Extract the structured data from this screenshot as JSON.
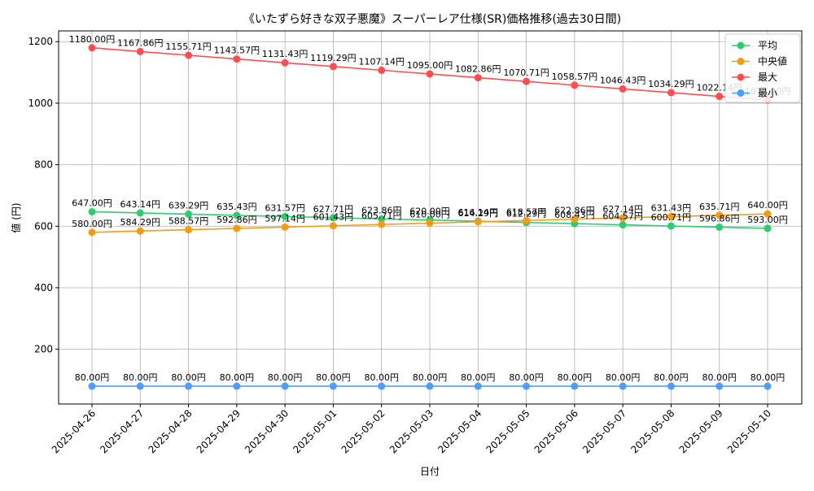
{
  "chart_data": {
    "type": "line",
    "title": "《いたずら好きな双子悪魔》スーパーレア仕様(SR)価格推移(過去30日間)",
    "xlabel": "日付",
    "ylabel": "値 (円)",
    "ylim": [
      22,
      1235
    ],
    "yticks": [
      200,
      400,
      600,
      800,
      1000,
      1200
    ],
    "grid": true,
    "legend_position": "top-right",
    "label_suffix": "円",
    "categories": [
      "2025-04-26",
      "2025-04-27",
      "2025-04-28",
      "2025-04-29",
      "2025-04-30",
      "2025-05-01",
      "2025-05-02",
      "2025-05-03",
      "2025-05-04",
      "2025-05-05",
      "2025-05-06",
      "2025-05-07",
      "2025-05-08",
      "2025-05-09",
      "2025-05-10"
    ],
    "series": [
      {
        "name": "平均",
        "color": "#2ecc71",
        "values": [
          647.0,
          643.14,
          639.29,
          635.43,
          631.57,
          627.71,
          623.86,
          620.0,
          616.14,
          612.29,
          608.43,
          604.57,
          600.71,
          596.86,
          593.0
        ]
      },
      {
        "name": "中央値",
        "color": "#f39c12",
        "values": [
          580.0,
          584.29,
          588.57,
          592.86,
          597.14,
          601.43,
          605.71,
          610.0,
          614.29,
          618.57,
          622.86,
          627.14,
          631.43,
          635.71,
          640.0
        ]
      },
      {
        "name": "最大",
        "color": "#ff4d4d",
        "values": [
          1180.0,
          1167.86,
          1155.71,
          1143.57,
          1131.43,
          1119.29,
          1107.14,
          1095.0,
          1082.86,
          1070.71,
          1058.57,
          1046.43,
          1034.29,
          1022.14,
          1010.0
        ]
      },
      {
        "name": "最小",
        "color": "#4d9fff",
        "values": [
          80.0,
          80.0,
          80.0,
          80.0,
          80.0,
          80.0,
          80.0,
          80.0,
          80.0,
          80.0,
          80.0,
          80.0,
          80.0,
          80.0,
          80.0
        ]
      }
    ]
  }
}
